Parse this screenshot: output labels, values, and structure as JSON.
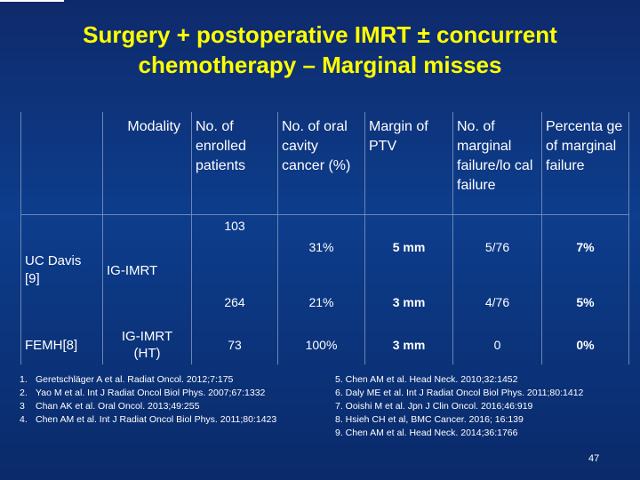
{
  "title_line1": "Surgery + postoperative IMRT ± concurrent",
  "title_line2": "chemotherapy – Marginal misses",
  "table": {
    "headers": {
      "study": "",
      "modality": "Modality",
      "enrolled": "No. of enrolled patients",
      "oral": "No. of oral cavity cancer (%)",
      "margin": "Margin of PTV",
      "failure": "No. of marginal failure/lo cal failure",
      "percentage": "Percenta ge of marginal failure"
    },
    "uc_davis": "UC Davis [9]",
    "ig_imrt": "IG-IMRT",
    "fmh": "FEMH[8]",
    "ig_imrt_ht": "IG-IMRT (HT)",
    "rows": [
      {
        "enrolled": "103",
        "oral": "31%",
        "margin": "5 mm",
        "failure": "5/76",
        "percentage": "7%"
      },
      {
        "enrolled": "264",
        "oral": "21%",
        "margin": "3 mm",
        "failure": "4/76",
        "percentage": "5%"
      },
      {
        "enrolled": "73",
        "oral": "100%",
        "margin": "3 mm",
        "failure": "0",
        "percentage": "0%"
      }
    ]
  },
  "references_left": [
    {
      "num": "1.",
      "text": "Geretschläger A et al. Radiat Oncol. 2012;7:175"
    },
    {
      "num": "2.",
      "text": "Yao M et al. Int J Radiat Oncol Biol Phys. 2007;67:1332"
    },
    {
      "num": "3",
      "text": "Chan AK et al. Oral Oncol. 2013;49:255"
    },
    {
      "num": "4.",
      "text": "Chen AM et al. Int J Radiat Oncol Biol Phys. 2011;80:1423"
    }
  ],
  "references_right": [
    "5. Chen AM et al. Head Neck. 2010;32:1452",
    "6. Daly ME et al. Int J Radiat Oncol Biol Phys. 2011;80:1412",
    "7. Ooishi M et al. Jpn J Clin Oncol. 2016;46:919",
    "8. Hsieh CH et al, BMC Cancer. 2016; 16:139",
    "9. Chen AM et al. Head Neck. 2014;36:1766"
  ],
  "page_number": "47"
}
